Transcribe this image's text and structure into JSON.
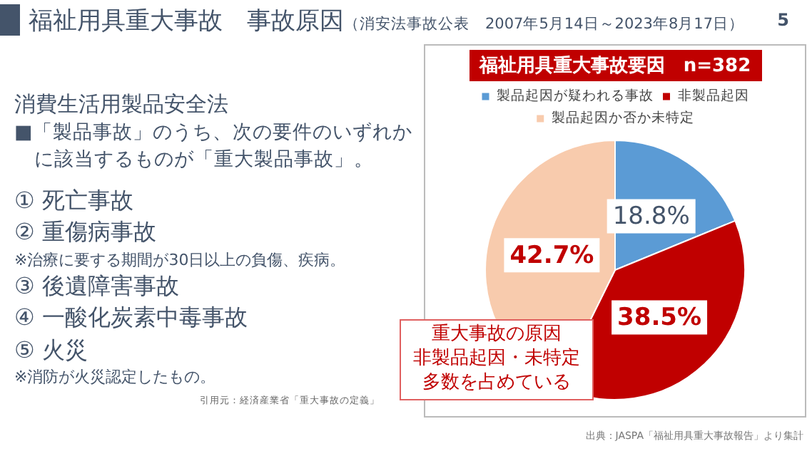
{
  "chart_data": {
    "type": "pie",
    "title": "福祉用具重大事故要因　n=382",
    "categories": [
      "製品起因が疑われる事故",
      "非製品起因",
      "製品起因か否か未特定"
    ],
    "values": [
      18.8,
      38.5,
      42.7
    ],
    "colors": [
      "#5b9bd5",
      "#c00000",
      "#f8cbad"
    ],
    "value_labels": [
      "18.8%",
      "38.5%",
      "42.7%"
    ],
    "legend": "top",
    "annotations": [
      "福祉用具重大事故　事故原因",
      "（消安法事故公表　2007年5月14日～2023年8月17日）",
      "5",
      "消費生活用製品安全法",
      "■「製品事故」のうち、次の要件のいずれかに該当するものが「重大製品事故」。",
      "① 死亡事故",
      "② 重傷病事故",
      "※治療に要する期間が30日以上の負傷、疾病。",
      "③ 後遺障害事故",
      "④ 一酸化炭素中毒事故",
      "⑤ 火災",
      "※消防が火災認定したもの。",
      "引用元：経済産業省「重大事故の定義」",
      "重大事故の原因",
      "非製品起因・未特定",
      "多数を占めている",
      "出典：JASPA「福祉用具重大事故報告」より集計"
    ]
  }
}
